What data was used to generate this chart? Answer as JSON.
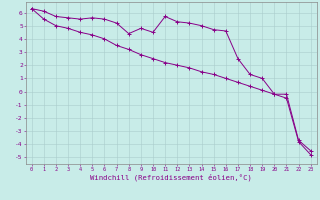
{
  "xlabel": "Windchill (Refroidissement éolien,°C)",
  "background_color": "#c8ece8",
  "grid_color": "#aacccc",
  "line_color": "#880088",
  "xlim": [
    -0.5,
    23.5
  ],
  "ylim": [
    -5.5,
    6.8
  ],
  "xticks": [
    0,
    1,
    2,
    3,
    4,
    5,
    6,
    7,
    8,
    9,
    10,
    11,
    12,
    13,
    14,
    15,
    16,
    17,
    18,
    19,
    20,
    21,
    22,
    23
  ],
  "yticks": [
    -5,
    -4,
    -3,
    -2,
    -1,
    0,
    1,
    2,
    3,
    4,
    5,
    6
  ],
  "line1_x": [
    0,
    1,
    2,
    3,
    4,
    5,
    6,
    7,
    8,
    9,
    10,
    11,
    12,
    13,
    14,
    15,
    16,
    17,
    18,
    19,
    20,
    21,
    22,
    23
  ],
  "line1_y": [
    6.3,
    6.1,
    5.7,
    5.6,
    5.5,
    5.6,
    5.5,
    5.2,
    4.4,
    4.8,
    4.5,
    5.7,
    5.3,
    5.2,
    5.0,
    4.7,
    4.6,
    2.5,
    1.3,
    1.0,
    -0.2,
    -0.2,
    -3.7,
    -4.5
  ],
  "line2_x": [
    0,
    1,
    2,
    3,
    4,
    5,
    6,
    7,
    8,
    9,
    10,
    11,
    12,
    13,
    14,
    15,
    16,
    17,
    18,
    19,
    20,
    21,
    22,
    23
  ],
  "line2_y": [
    6.3,
    5.5,
    5.0,
    4.8,
    4.5,
    4.3,
    4.0,
    3.5,
    3.2,
    2.8,
    2.5,
    2.2,
    2.0,
    1.8,
    1.5,
    1.3,
    1.0,
    0.7,
    0.4,
    0.1,
    -0.2,
    -0.5,
    -3.8,
    -4.8
  ]
}
